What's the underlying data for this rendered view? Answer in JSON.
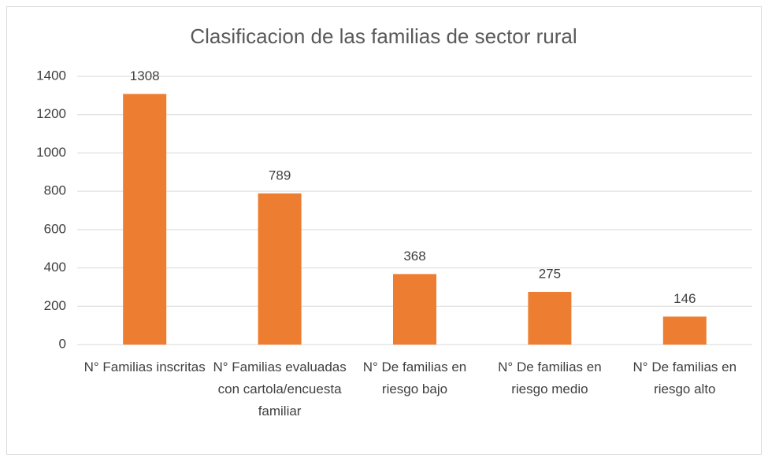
{
  "chart_data": {
    "type": "bar",
    "title": "Clasificacion de las familias de sector rural",
    "categories": [
      "N° Familias inscritas",
      "N° Familias evaluadas con cartola/encuesta familiar",
      "N° De familias en riesgo bajo",
      "N° De familias en riesgo medio",
      "N° De familias en riesgo alto"
    ],
    "values": [
      1308,
      789,
      368,
      275,
      146
    ],
    "color": "#ed7d31",
    "ylim": [
      0,
      1400
    ],
    "yticks": [
      0,
      200,
      400,
      600,
      800,
      1000,
      1200,
      1400
    ],
    "grid": true
  }
}
